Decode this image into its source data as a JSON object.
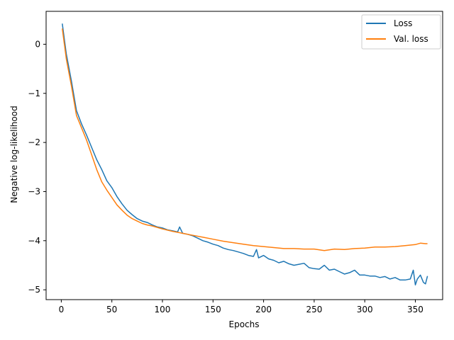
{
  "chart_data": {
    "type": "line",
    "title": "",
    "xlabel": "Epochs",
    "ylabel": "Negative log-likelihood",
    "xlim": [
      -15,
      377
    ],
    "ylim": [
      -5.2,
      0.67
    ],
    "xticks": [
      0,
      50,
      100,
      150,
      200,
      250,
      300,
      350
    ],
    "yticks": [
      0,
      -1,
      -2,
      -3,
      -4,
      -5
    ],
    "ytick_labels": [
      "0",
      "−1",
      "−2",
      "−3",
      "−4",
      "−5"
    ],
    "grid": false,
    "legend_position": "top-right",
    "series": [
      {
        "name": "Loss",
        "color": "#1f77b4",
        "x": [
          1,
          5,
          10,
          15,
          20,
          25,
          30,
          35,
          40,
          45,
          50,
          55,
          60,
          65,
          70,
          75,
          80,
          85,
          90,
          95,
          100,
          105,
          110,
          115,
          117,
          120,
          125,
          130,
          135,
          140,
          145,
          150,
          155,
          160,
          165,
          170,
          175,
          180,
          185,
          190,
          193,
          195,
          200,
          205,
          210,
          215,
          220,
          225,
          230,
          235,
          240,
          245,
          250,
          255,
          260,
          265,
          270,
          275,
          280,
          285,
          290,
          295,
          300,
          305,
          310,
          315,
          320,
          325,
          330,
          335,
          340,
          345,
          348,
          350,
          352,
          355,
          358,
          360,
          362
        ],
        "y": [
          0.42,
          -0.2,
          -0.75,
          -1.35,
          -1.62,
          -1.85,
          -2.1,
          -2.35,
          -2.55,
          -2.78,
          -2.92,
          -3.1,
          -3.25,
          -3.38,
          -3.47,
          -3.55,
          -3.6,
          -3.63,
          -3.68,
          -3.72,
          -3.74,
          -3.78,
          -3.8,
          -3.82,
          -3.72,
          -3.85,
          -3.87,
          -3.9,
          -3.95,
          -4.0,
          -4.03,
          -4.07,
          -4.1,
          -4.15,
          -4.18,
          -4.2,
          -4.23,
          -4.26,
          -4.3,
          -4.32,
          -4.18,
          -4.35,
          -4.3,
          -4.37,
          -4.4,
          -4.45,
          -4.42,
          -4.47,
          -4.5,
          -4.48,
          -4.46,
          -4.55,
          -4.57,
          -4.58,
          -4.5,
          -4.6,
          -4.58,
          -4.63,
          -4.68,
          -4.65,
          -4.6,
          -4.7,
          -4.7,
          -4.72,
          -4.72,
          -4.75,
          -4.73,
          -4.78,
          -4.75,
          -4.8,
          -4.8,
          -4.78,
          -4.6,
          -4.9,
          -4.78,
          -4.7,
          -4.85,
          -4.88,
          -4.72
        ]
      },
      {
        "name": "Val. loss",
        "color": "#ff7f0e",
        "x": [
          1,
          5,
          10,
          15,
          20,
          25,
          30,
          35,
          40,
          45,
          50,
          55,
          60,
          65,
          70,
          75,
          80,
          85,
          90,
          95,
          100,
          110,
          120,
          130,
          140,
          150,
          160,
          170,
          180,
          190,
          200,
          210,
          220,
          230,
          240,
          250,
          260,
          270,
          280,
          290,
          300,
          310,
          320,
          330,
          340,
          350,
          355,
          360,
          362
        ],
        "y": [
          0.32,
          -0.3,
          -0.85,
          -1.45,
          -1.7,
          -1.95,
          -2.25,
          -2.55,
          -2.8,
          -2.97,
          -3.12,
          -3.27,
          -3.38,
          -3.48,
          -3.55,
          -3.6,
          -3.65,
          -3.68,
          -3.7,
          -3.73,
          -3.76,
          -3.81,
          -3.85,
          -3.89,
          -3.93,
          -3.97,
          -4.01,
          -4.04,
          -4.07,
          -4.1,
          -4.12,
          -4.14,
          -4.16,
          -4.16,
          -4.17,
          -4.17,
          -4.2,
          -4.17,
          -4.18,
          -4.16,
          -4.15,
          -4.13,
          -4.13,
          -4.12,
          -4.1,
          -4.08,
          -4.05,
          -4.06,
          -4.06
        ]
      }
    ]
  }
}
